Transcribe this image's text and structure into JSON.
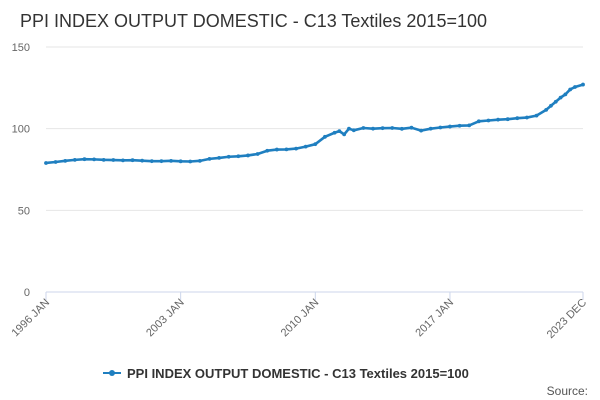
{
  "chart_data": {
    "type": "line",
    "title": "PPI INDEX OUTPUT DOMESTIC - C13 Textiles 2015=100",
    "xlabel": "",
    "ylabel": "",
    "ylim": [
      0,
      150
    ],
    "xlim": [
      "1996-01",
      "2023-12"
    ],
    "y_ticks": [
      "0",
      "50",
      "100",
      "150"
    ],
    "x_ticks": [
      {
        "label": "1996 JAN",
        "date": "1996-01"
      },
      {
        "label": "2003 JAN",
        "date": "2003-01"
      },
      {
        "label": "2010 JAN",
        "date": "2010-01"
      },
      {
        "label": "2017 JAN",
        "date": "2017-01"
      },
      {
        "label": "2023 DEC",
        "date": "2023-12"
      }
    ],
    "grid": "horizontal",
    "legend_position": "bottom",
    "series": [
      {
        "name": "PPI INDEX OUTPUT DOMESTIC - C13 Textiles 2015=100",
        "color": "#1f7fc0",
        "x": [
          "1996-01",
          "1996-07",
          "1997-01",
          "1997-07",
          "1998-01",
          "1998-07",
          "1999-01",
          "1999-07",
          "2000-01",
          "2000-07",
          "2001-01",
          "2001-07",
          "2002-01",
          "2002-07",
          "2003-01",
          "2003-07",
          "2004-01",
          "2004-07",
          "2005-01",
          "2005-07",
          "2006-01",
          "2006-07",
          "2007-01",
          "2007-07",
          "2008-01",
          "2008-07",
          "2009-01",
          "2009-07",
          "2010-01",
          "2010-07",
          "2011-01",
          "2011-04",
          "2011-07",
          "2011-10",
          "2012-01",
          "2012-07",
          "2013-01",
          "2013-07",
          "2014-01",
          "2014-07",
          "2015-01",
          "2015-07",
          "2016-01",
          "2016-07",
          "2017-01",
          "2017-07",
          "2018-01",
          "2018-07",
          "2019-01",
          "2019-07",
          "2020-01",
          "2020-07",
          "2021-01",
          "2021-07",
          "2022-01",
          "2022-04",
          "2022-07",
          "2022-10",
          "2023-01",
          "2023-04",
          "2023-07",
          "2023-12"
        ],
        "values": [
          79,
          79.6,
          80.3,
          80.9,
          81.3,
          81.2,
          80.9,
          80.8,
          80.6,
          80.7,
          80.4,
          80.1,
          80.1,
          80.3,
          80,
          79.9,
          80.3,
          81.5,
          82.1,
          82.8,
          83.1,
          83.6,
          84.5,
          86.5,
          87.2,
          87.3,
          87.8,
          89,
          90.5,
          95,
          97.5,
          98.5,
          96.5,
          100,
          99,
          100.4,
          100,
          100.3,
          100.4,
          99.9,
          100.6,
          98.8,
          100,
          100.7,
          101.3,
          101.8,
          102,
          104.5,
          105,
          105.5,
          105.8,
          106.4,
          106.8,
          108,
          111.5,
          114,
          116.5,
          119,
          121,
          124,
          125.5,
          127
        ]
      }
    ]
  },
  "legend": {
    "label": "PPI INDEX OUTPUT DOMESTIC - C13 Textiles 2015=100"
  },
  "source_label": "Source:"
}
